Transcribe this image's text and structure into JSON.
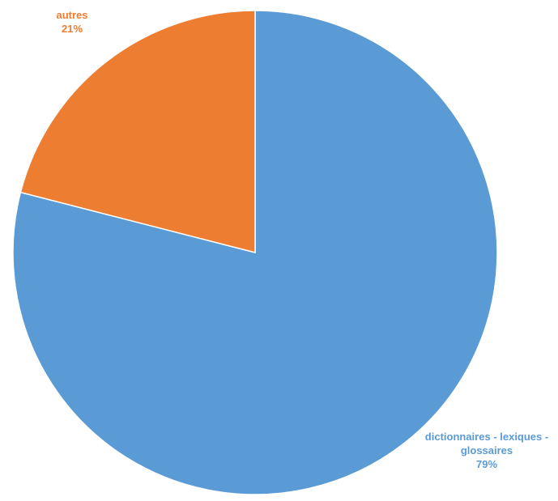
{
  "chart_data": {
    "type": "pie",
    "title": "",
    "start_angle_deg": 0,
    "direction": "clockwise",
    "legend": "none",
    "slices": [
      {
        "label_lines": [
          "dictionnaires - lexiques -",
          "glossaires"
        ],
        "value": 79,
        "value_label": "79%",
        "color": "#5B9BD5"
      },
      {
        "label_lines": [
          "autres"
        ],
        "value": 21,
        "value_label": "21%",
        "color": "#ED7D31"
      }
    ]
  }
}
